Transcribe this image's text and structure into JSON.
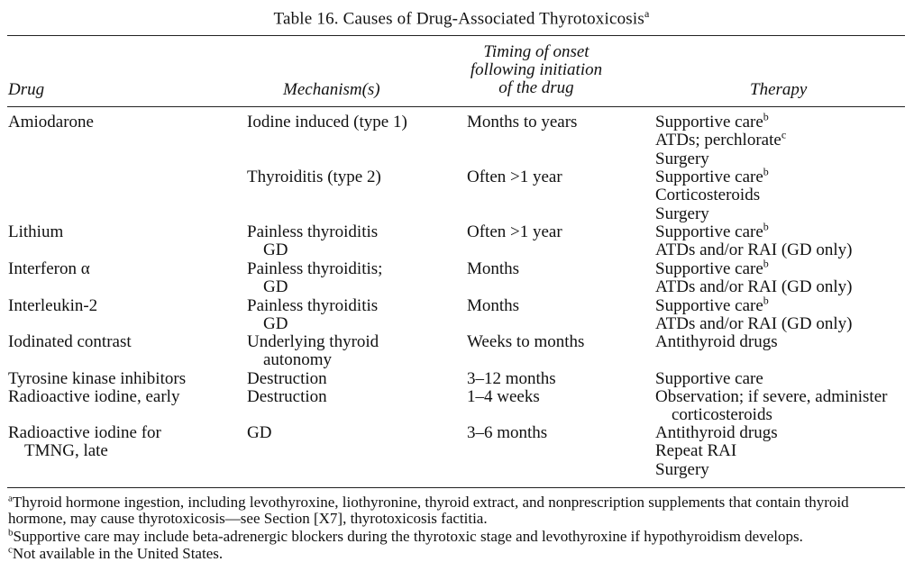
{
  "title": {
    "text": "Table 16. Causes of Drug-Associated Thyrotoxicosis",
    "sup": "a"
  },
  "headers": {
    "drug": "Drug",
    "mechanism": "Mechanism(s)",
    "timing": [
      "Timing of onset",
      "following initiation",
      "of the drug"
    ],
    "therapy": "Therapy"
  },
  "rows": [
    {
      "drug": [
        "Amiodarone"
      ],
      "mechanism": [
        "Iodine induced (type 1)"
      ],
      "timing": [
        "Months to years"
      ],
      "therapy": [
        {
          "text": "Supportive care",
          "sup": "b"
        },
        {
          "text": "ATDs; perchlorate",
          "sup": "c"
        },
        {
          "text": "Surgery",
          "sup": ""
        }
      ]
    },
    {
      "drug": [],
      "mechanism": [
        "Thyroiditis (type 2)"
      ],
      "timing": [
        "Often >1 year"
      ],
      "therapy": [
        {
          "text": "Supportive care",
          "sup": "b"
        },
        {
          "text": "Corticosteroids",
          "sup": ""
        },
        {
          "text": "Surgery",
          "sup": ""
        }
      ]
    },
    {
      "drug": [
        "Lithium"
      ],
      "mechanism": [
        "Painless thyroiditis",
        "GD"
      ],
      "timing": [
        "Often >1 year"
      ],
      "therapy": [
        {
          "text": "Supportive care",
          "sup": "b"
        },
        {
          "text": "ATDs and/or RAI (GD only)",
          "sup": ""
        }
      ]
    },
    {
      "drug": [
        "Interferon α"
      ],
      "mechanism": [
        "Painless thyroiditis;",
        "GD"
      ],
      "timing": [
        "Months"
      ],
      "therapy": [
        {
          "text": "Supportive care",
          "sup": "b"
        },
        {
          "text": "ATDs and/or RAI (GD only)",
          "sup": ""
        }
      ]
    },
    {
      "drug": [
        "Interleukin-2"
      ],
      "mechanism": [
        "Painless thyroiditis",
        "GD"
      ],
      "timing": [
        "Months"
      ],
      "therapy": [
        {
          "text": "Supportive care",
          "sup": "b"
        },
        {
          "text": "ATDs and/or RAI (GD only)",
          "sup": ""
        }
      ]
    },
    {
      "drug": [
        "Iodinated contrast"
      ],
      "mechanism": [
        "Underlying thyroid",
        "autonomy"
      ],
      "timing": [
        "Weeks to months"
      ],
      "therapy": [
        {
          "text": "Antithyroid drugs",
          "sup": ""
        }
      ]
    },
    {
      "drug": [
        "Tyrosine kinase inhibitors"
      ],
      "mechanism": [
        "Destruction"
      ],
      "timing": [
        "3–12 months"
      ],
      "therapy": [
        {
          "text": "Supportive care",
          "sup": ""
        }
      ]
    },
    {
      "drug": [
        "Radioactive iodine, early"
      ],
      "mechanism": [
        "Destruction"
      ],
      "timing": [
        "1–4 weeks"
      ],
      "therapy": [
        {
          "text": "Observation; if severe, administer",
          "sup": ""
        },
        {
          "text": "corticosteroids",
          "sup": ""
        }
      ]
    },
    {
      "drug": [
        "Radioactive iodine for",
        "TMNG, late"
      ],
      "mechanism": [
        "GD"
      ],
      "timing": [
        "3–6 months"
      ],
      "therapy": [
        {
          "text": "Antithyroid drugs",
          "sup": ""
        },
        {
          "text": "Repeat RAI",
          "sup": ""
        },
        {
          "text": "Surgery",
          "sup": ""
        }
      ]
    }
  ],
  "footnotes": [
    {
      "mark": "a",
      "lines": [
        "Thyroid hormone ingestion, including levothyroxine, liothyronine, thyroid extract, and nonprescription supplements that contain thyroid",
        "hormone, may cause thyrotoxicosis—see Section [X7], thyrotoxicosis factitia."
      ]
    },
    {
      "mark": "b",
      "lines": [
        "Supportive care may include beta-adrenergic blockers during the thyrotoxic stage and levothyroxine if hypothyroidism develops."
      ]
    },
    {
      "mark": "c",
      "lines": [
        "Not available in the United States."
      ]
    }
  ]
}
